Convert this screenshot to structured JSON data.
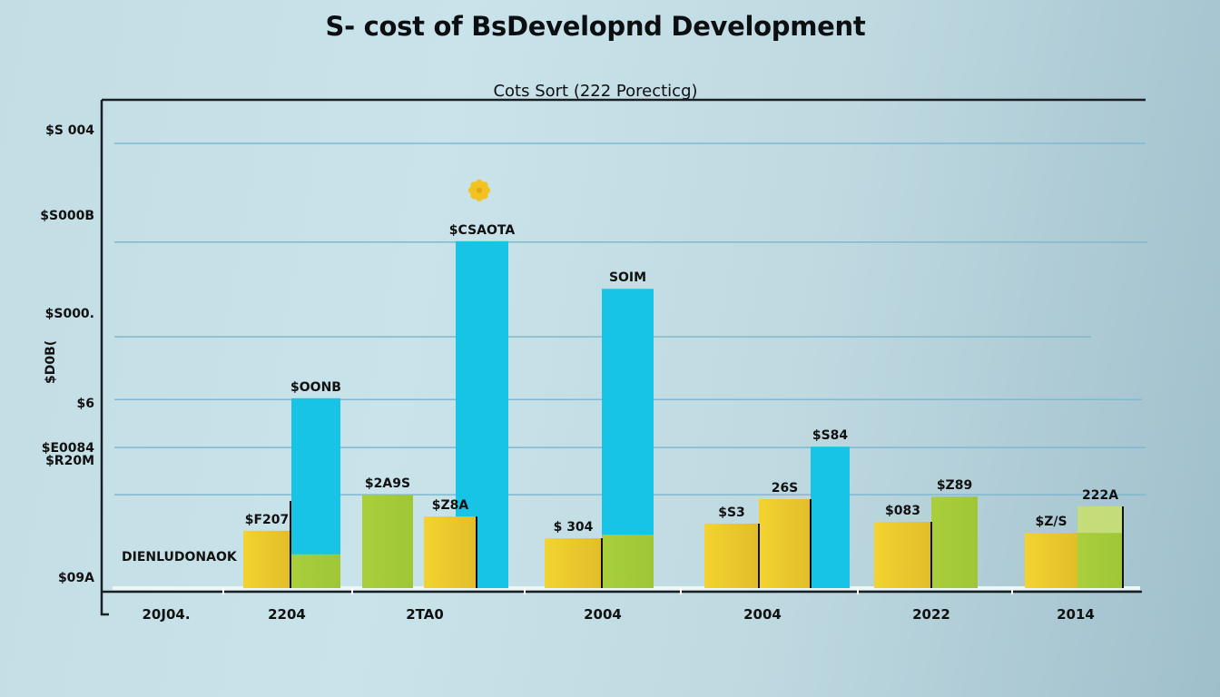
{
  "chart_data": {
    "type": "bar",
    "title": "S- cost of BsDevelopnd Development",
    "subtitle": "Cots Sort (222 Porecticg)",
    "xlabel": "",
    "ylabel": "",
    "ylim": [
      0,
      100
    ],
    "grid": true,
    "legend": "none",
    "annotation": "DIENLUDONAOK",
    "y_ticks": [
      {
        "value": 0,
        "label": "$09A"
      },
      {
        "value": 21,
        "label": "$R20M"
      },
      {
        "value": 31.6,
        "label": "$E0084"
      },
      {
        "value": 42.4,
        "label": "$6"
      },
      {
        "value": 56.5,
        "label": "$S000."
      },
      {
        "value": 77.8,
        "label": "$S000B"
      },
      {
        "value": 100,
        "label": "$S 004"
      }
    ],
    "y_tick_sublabel": "$D0B(",
    "categories": [
      "20J04.",
      "2204",
      "2TA0",
      "2004",
      "2004",
      "2022",
      "2014"
    ],
    "colors": {
      "yellow": "#f0cd2e",
      "green": "#a6cc3a",
      "blue": "#18c4e6",
      "lightgreen": "#c5dc7a",
      "gridline": "#7fb8d0",
      "axis": "#1a1f24",
      "gear": "#f2c320"
    },
    "bars": [
      {
        "category_index": 1,
        "slot": 0,
        "color": "yellow",
        "value": 12.9,
        "label": "$F207"
      },
      {
        "category_index": 1,
        "slot": 1,
        "color": "blue",
        "value": 42.7,
        "label": "$OONB",
        "base_segment": {
          "color": "green",
          "value": 7.6
        }
      },
      {
        "category_index": 2,
        "slot": 0,
        "color": "green",
        "value": 21.0,
        "label": "$2A9S"
      },
      {
        "category_index": 2,
        "slot": 1,
        "color": "yellow",
        "value": 16.1,
        "label": "$Z8A"
      },
      {
        "category_index": 2,
        "slot": 2,
        "color": "blue",
        "value": 78.0,
        "label": "$CSAOTA",
        "icon": "gear-icon"
      },
      {
        "category_index": 3,
        "slot": 0,
        "color": "yellow",
        "value": 11.2,
        "label": "$ 304"
      },
      {
        "category_index": 3,
        "slot": 1,
        "color": "blue",
        "value": 67.3,
        "label": "SOIM",
        "base_segment": {
          "color": "green",
          "value": 12.0
        }
      },
      {
        "category_index": 4,
        "slot": 0,
        "color": "yellow",
        "value": 14.5,
        "label": "$S3"
      },
      {
        "category_index": 4,
        "slot": 1,
        "color": "yellow",
        "value": 20.0,
        "label": "26S"
      },
      {
        "category_index": 4,
        "slot": 2,
        "color": "blue",
        "value": 31.8,
        "label": "$S84"
      },
      {
        "category_index": 5,
        "slot": 0,
        "color": "yellow",
        "value": 14.9,
        "label": "$083"
      },
      {
        "category_index": 5,
        "slot": 1,
        "color": "green",
        "value": 20.6,
        "label": "$Z89"
      },
      {
        "category_index": 6,
        "slot": 0,
        "color": "yellow",
        "value": 12.4,
        "label": "$Z/S"
      },
      {
        "category_index": 6,
        "slot": 1,
        "color": "lightgreen",
        "value": 18.4,
        "label": "222A",
        "base_segment": {
          "color": "green",
          "value": 12.4
        }
      }
    ]
  }
}
